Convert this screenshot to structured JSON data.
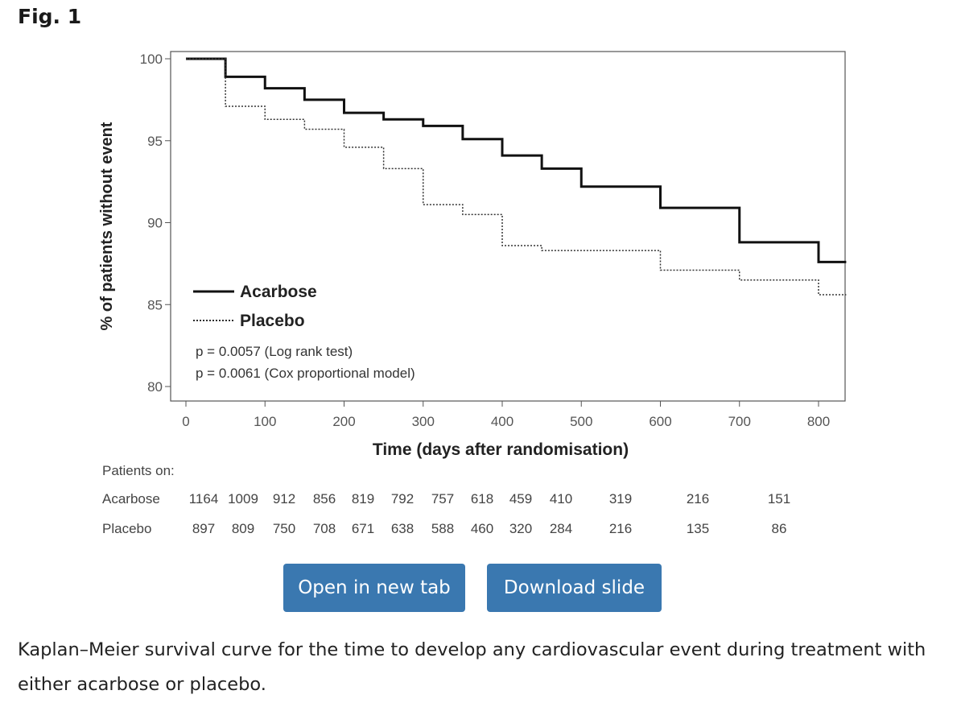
{
  "figure": {
    "label": "Fig. 1"
  },
  "chart_data": {
    "type": "line",
    "style": "step",
    "xlabel": "Time (days after randomisation)",
    "ylabel": "% of patients without event",
    "xlim": [
      0,
      835
    ],
    "ylim": [
      79,
      100.3
    ],
    "x_ticks": [
      0,
      100,
      200,
      300,
      400,
      500,
      600,
      700,
      800
    ],
    "y_ticks": [
      80,
      85,
      90,
      95,
      100
    ],
    "grid": false,
    "series": [
      {
        "name": "Acarbose",
        "line_style": "solid",
        "points": [
          [
            0,
            100
          ],
          [
            50,
            98.9
          ],
          [
            100,
            98.2
          ],
          [
            150,
            97.5
          ],
          [
            200,
            96.7
          ],
          [
            250,
            96.3
          ],
          [
            300,
            95.9
          ],
          [
            350,
            95.1
          ],
          [
            400,
            94.1
          ],
          [
            450,
            93.3
          ],
          [
            500,
            92.2
          ],
          [
            600,
            90.9
          ],
          [
            700,
            88.8
          ],
          [
            800,
            87.6
          ],
          [
            835,
            87.6
          ]
        ]
      },
      {
        "name": "Placebo",
        "line_style": "dotted",
        "points": [
          [
            0,
            100
          ],
          [
            50,
            97.1
          ],
          [
            100,
            96.3
          ],
          [
            150,
            95.7
          ],
          [
            200,
            94.6
          ],
          [
            250,
            93.3
          ],
          [
            300,
            91.1
          ],
          [
            350,
            90.5
          ],
          [
            400,
            88.6
          ],
          [
            450,
            88.3
          ],
          [
            600,
            87.1
          ],
          [
            700,
            86.5
          ],
          [
            800,
            85.6
          ],
          [
            835,
            85.6
          ]
        ]
      }
    ],
    "annotations": [
      "p = 0.0057 (Log rank test)",
      "p = 0.0061 (Cox proportional model)"
    ],
    "legend_position": "bottom-left",
    "risk_table": {
      "title": "Patients on:",
      "rows": [
        {
          "label": "Acarbose",
          "values": [
            "1164",
            "1009",
            "912",
            "856",
            "819",
            "792",
            "757",
            "618",
            "459",
            "410",
            "319",
            "216",
            "151"
          ]
        },
        {
          "label": "Placebo",
          "values": [
            "897",
            "809",
            "750",
            "708",
            "671",
            "638",
            "588",
            "460",
            "320",
            "284",
            "216",
            "135",
            "86"
          ]
        }
      ]
    }
  },
  "buttons": {
    "open": "Open in new tab",
    "download": "Download slide"
  },
  "caption": "Kaplan–Meier survival curve for the time to develop any cardiovascular event during treatment with either acarbose or placebo."
}
